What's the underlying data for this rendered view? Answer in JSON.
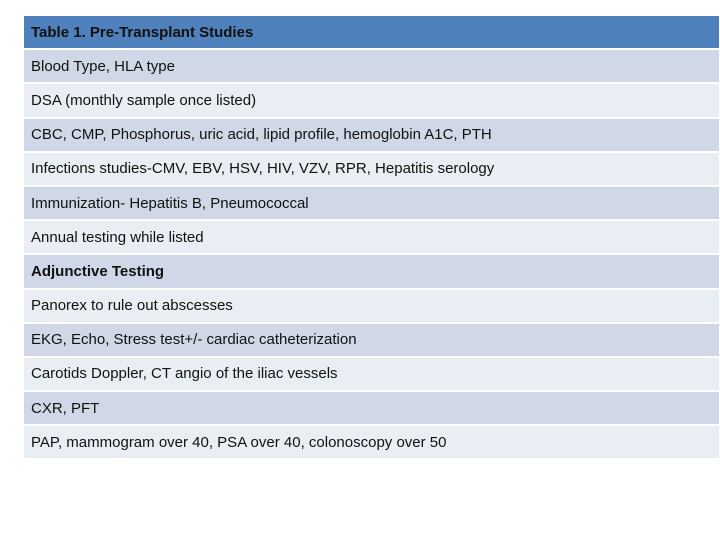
{
  "table": {
    "header": "Table 1. Pre-Transplant Studies",
    "rows": [
      {
        "text": "Blood Type, HLA type",
        "bold": false
      },
      {
        "text": "DSA (monthly sample once listed)",
        "bold": false
      },
      {
        "text": "CBC, CMP, Phosphorus, uric acid, lipid profile, hemoglobin A1C, PTH",
        "bold": false
      },
      {
        "text": "Infections studies-CMV, EBV, HSV, HIV, VZV, RPR, Hepatitis serology",
        "bold": false
      },
      {
        "text": "Immunization- Hepatitis B, Pneumococcal",
        "bold": false
      },
      {
        "text": "Annual testing while listed",
        "bold": false
      },
      {
        "text": "Adjunctive Testing",
        "bold": true
      },
      {
        "text": "Panorex to rule out abscesses",
        "bold": false
      },
      {
        "text": "EKG, Echo, Stress test+/- cardiac catheterization",
        "bold": false
      },
      {
        "text": "Carotids Doppler, CT angio of the iliac vessels",
        "bold": false
      },
      {
        "text": "CXR, PFT",
        "bold": false
      },
      {
        "text": "PAP, mammogram over 40, PSA over 40, colonoscopy over 50",
        "bold": false
      }
    ]
  },
  "colors": {
    "header_bg": "#4f81bd",
    "row_band_1": "#d0d8e8",
    "row_band_2": "#e9edf4"
  }
}
